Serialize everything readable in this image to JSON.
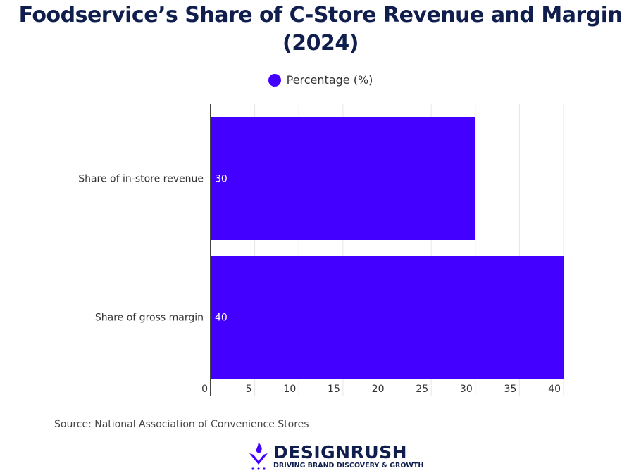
{
  "chart_data": {
    "type": "bar",
    "orientation": "horizontal",
    "title": "Foodservice’s Share of C-Store Revenue and Margin (2024)",
    "categories": [
      "Share of in-store revenue",
      "Share of gross margin"
    ],
    "series": [
      {
        "name": "Percentage (%)",
        "values": [
          30,
          40
        ],
        "color": "#4400ff"
      }
    ],
    "data_labels": [
      "30",
      "40"
    ],
    "xlim": [
      0,
      40
    ],
    "xticks": [
      0,
      5,
      10,
      15,
      20,
      25,
      30,
      35,
      40
    ],
    "grid": true,
    "legend": "top-center"
  },
  "source": "Source: National Association of Convenience Stores",
  "logo": {
    "name": "DESIGNRUSH",
    "tagline": "DRIVING BRAND DISCOVERY & GROWTH"
  }
}
